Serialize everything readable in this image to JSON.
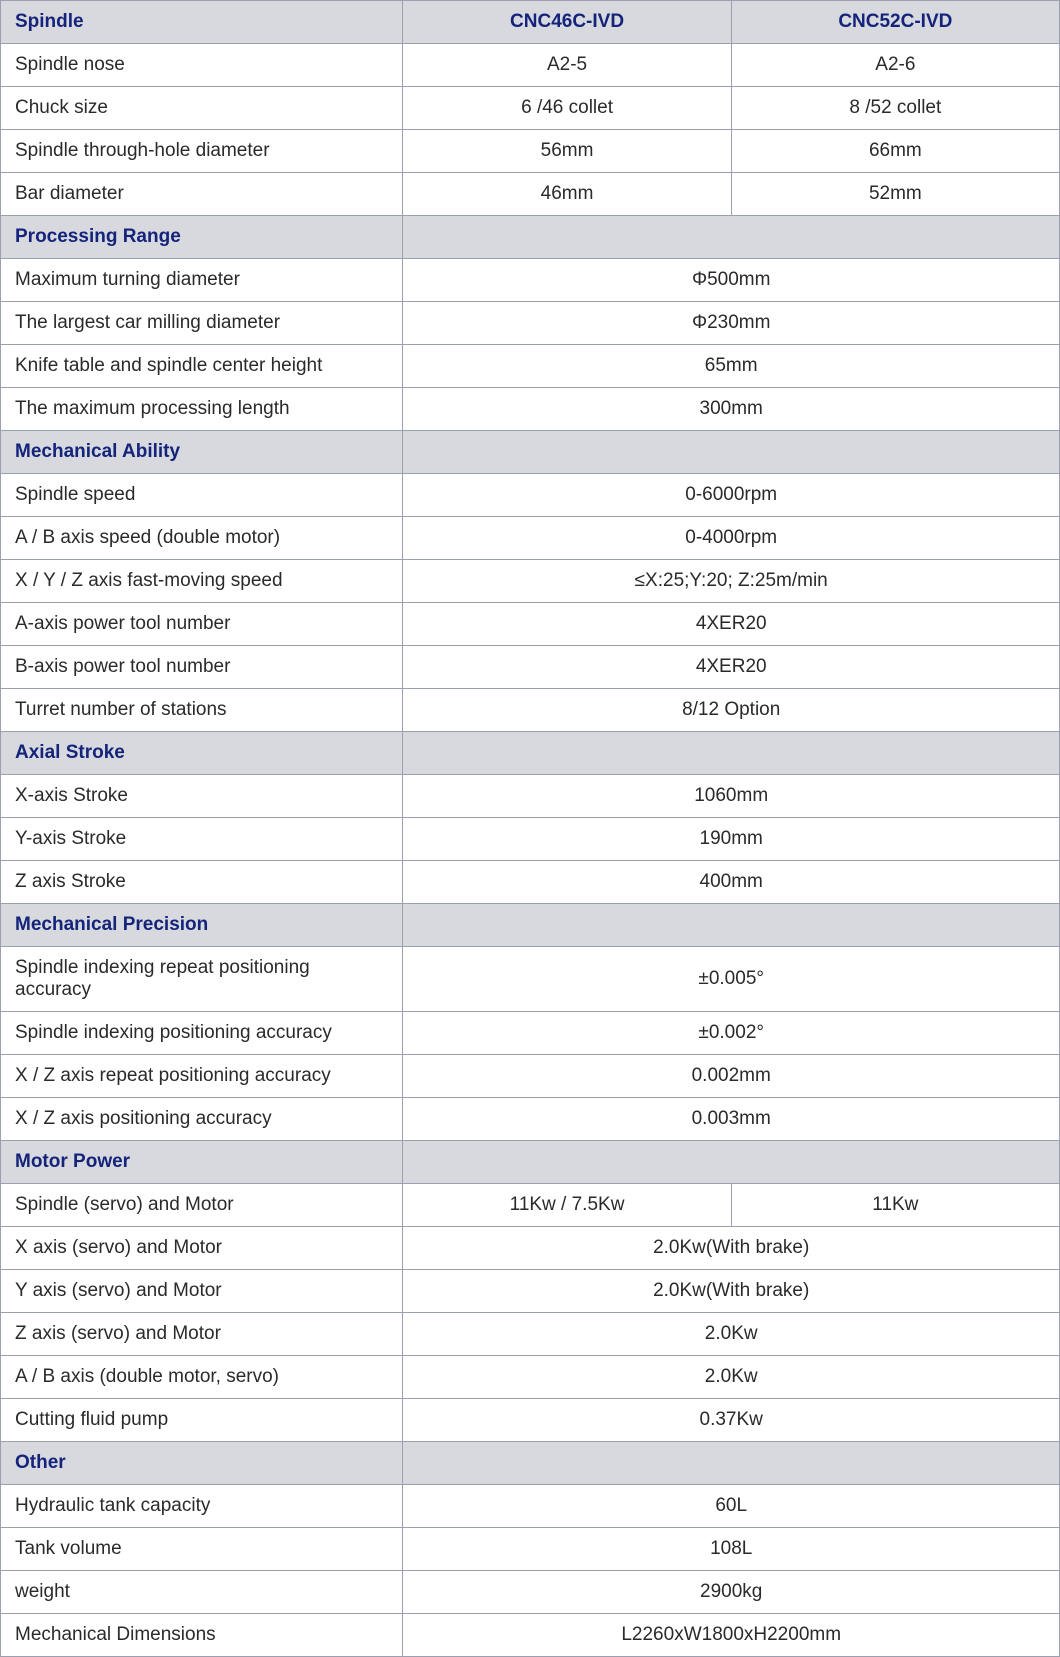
{
  "colors": {
    "header_bg": "#d7d9de",
    "header_text": "#14247a",
    "border": "#9aa0b0",
    "body_text": "#2a2a2a"
  },
  "columns": {
    "model_a": "CNC46C-IVD",
    "model_b": "CNC52C-IVD"
  },
  "sections": [
    {
      "title": "Spindle",
      "has_column_headers": true,
      "rows": [
        {
          "label": "Spindle nose",
          "a": "A2-5",
          "b": "A2-6"
        },
        {
          "label": "Chuck size",
          "a": "6 /46 collet",
          "b": "8 /52 collet"
        },
        {
          "label": "Spindle through-hole diameter",
          "a": "56mm",
          "b": "66mm"
        },
        {
          "label": "Bar diameter",
          "a": "46mm",
          "b": "52mm"
        }
      ]
    },
    {
      "title": "Processing Range",
      "rows": [
        {
          "label": "Maximum turning diameter",
          "merged": "Φ500mm"
        },
        {
          "label": "The largest car milling diameter",
          "merged": "Φ230mm"
        },
        {
          "label": "Knife table and spindle center height",
          "merged": "65mm"
        },
        {
          "label": "The maximum processing length",
          "merged": "300mm"
        }
      ]
    },
    {
      "title": "Mechanical Ability",
      "rows": [
        {
          "label": "Spindle speed",
          "merged": "0-6000rpm"
        },
        {
          "label": "A / B axis speed (double motor)",
          "merged": "0-4000rpm"
        },
        {
          "label": "X / Y / Z axis fast-moving speed",
          "merged": "≤X:25;Y:20; Z:25m/min"
        },
        {
          "label": "A-axis power tool number",
          "merged": "4XER20"
        },
        {
          "label": "B-axis power tool number",
          "merged": "4XER20"
        },
        {
          "label": "Turret number of stations",
          "merged": "8/12 Option"
        }
      ]
    },
    {
      "title": "Axial Stroke",
      "rows": [
        {
          "label": "X-axis Stroke",
          "merged": "1060mm"
        },
        {
          "label": "Y-axis Stroke",
          "merged": "190mm"
        },
        {
          "label": "Z axis Stroke",
          "merged": "400mm"
        }
      ]
    },
    {
      "title": "Mechanical Precision",
      "rows": [
        {
          "label": "Spindle indexing repeat positioning accuracy",
          "merged": "±0.005°"
        },
        {
          "label": "Spindle indexing positioning accuracy",
          "merged": "±0.002°"
        },
        {
          "label": "X / Z axis repeat positioning accuracy",
          "merged": "0.002mm"
        },
        {
          "label": "X / Z axis positioning accuracy",
          "merged": "0.003mm"
        }
      ]
    },
    {
      "title": "Motor Power",
      "rows": [
        {
          "label": "Spindle (servo) and Motor",
          "a": "11Kw / 7.5Kw",
          "b": "11Kw"
        },
        {
          "label": "X axis (servo) and Motor",
          "merged": "2.0Kw(With brake)"
        },
        {
          "label": "Y axis (servo) and Motor",
          "merged": "2.0Kw(With brake)"
        },
        {
          "label": "Z axis (servo) and Motor",
          "merged": "2.0Kw"
        },
        {
          "label": "A / B axis (double motor, servo)",
          "merged": "2.0Kw"
        },
        {
          "label": "Cutting fluid pump",
          "merged": "0.37Kw"
        }
      ]
    },
    {
      "title": "Other",
      "rows": [
        {
          "label": "Hydraulic tank capacity",
          "merged": "60L"
        },
        {
          "label": "Tank volume",
          "merged": "108L"
        },
        {
          "label": "weight",
          "merged": "2900kg"
        },
        {
          "label": "Mechanical Dimensions",
          "merged": "L2260xW1800xH2200mm"
        }
      ]
    }
  ]
}
